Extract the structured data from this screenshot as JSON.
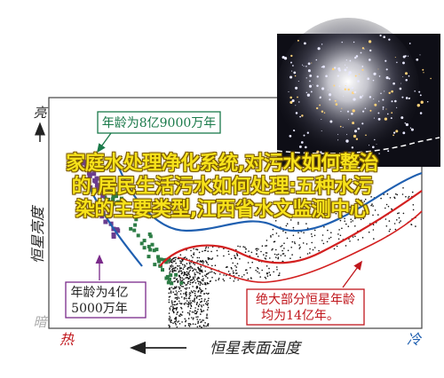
{
  "chart_data": {
    "type": "scatter",
    "title": "",
    "xlabel": "恒星表面温度",
    "ylabel": "恒星亮度",
    "y_top_label": "亮",
    "y_bottom_label": "暗",
    "x_left_label": "热",
    "x_right_label": "冷",
    "annotations": [
      {
        "text": "年龄为8亿9000万年",
        "color": "#1a7a4a"
      },
      {
        "text": "年龄为4亿",
        "text2": "5000万年",
        "color": "#7a2a8a"
      },
      {
        "text": "绝大部分恒星年龄",
        "text2": "均为14亿年。",
        "color": "#c0161c"
      }
    ],
    "series": [],
    "isochrones": [
      {
        "color": "#1f5fb0"
      },
      {
        "color": "#d32020"
      }
    ],
    "colors": {
      "young_cluster": "#6a3d8f",
      "mid_cluster": "#2d7d46",
      "old_cluster": "#111111",
      "axis": "#333333",
      "arrow": "#222222",
      "warm_label": "#c0161c",
      "cool_label": "#1f5fb0"
    }
  },
  "overlay": {
    "line1": "家庭水处理净化系统,对污水如何整治",
    "line2": "的,居民生活污水如何处理:五种水污",
    "line3": "染的主要类型,江西省水文监测中心"
  }
}
